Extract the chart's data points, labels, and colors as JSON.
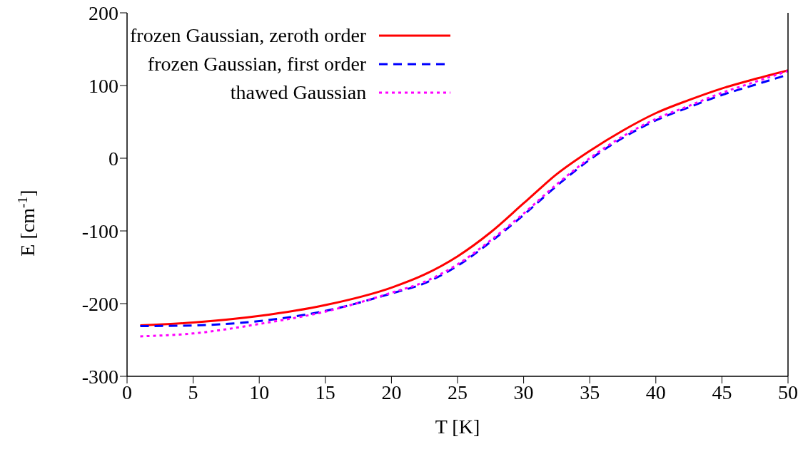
{
  "chart_data": {
    "type": "line",
    "xlabel": "T [K]",
    "ylabel": "E [cm$^{-1}$]",
    "xlim": [
      0,
      50
    ],
    "xticks": [
      0,
      5,
      10,
      15,
      20,
      25,
      30,
      35,
      40,
      45,
      50
    ],
    "ylim": [
      -300,
      200
    ],
    "yticks": [
      -300,
      -200,
      -100,
      0,
      100,
      200
    ],
    "grid": false,
    "legend": "top left",
    "marker": "none",
    "x": [
      1,
      5,
      10,
      15,
      20,
      22.5,
      25,
      27.5,
      30,
      32.5,
      35,
      37.5,
      40,
      42.5,
      45,
      47.5,
      50
    ],
    "series": [
      {
        "name": "frozen Gaussian, zeroth order",
        "color": "#ff0000",
        "line_style": "solid",
        "values": [
          -230,
          -226,
          -217,
          -202,
          -178,
          -160,
          -135,
          -102,
          -62,
          -22,
          10,
          38,
          62,
          80,
          96,
          109,
          121
        ]
      },
      {
        "name": "frozen Gaussian, first order",
        "color": "#0000ff",
        "line_style": "dashed",
        "values": [
          -231,
          -230,
          -224,
          -210,
          -186,
          -172,
          -148,
          -115,
          -78,
          -38,
          -2,
          28,
          52,
          70,
          87,
          101,
          115
        ]
      },
      {
        "name": "thawed Gaussian",
        "color": "#ff00ff",
        "line_style": "dotted",
        "values": [
          -245,
          -241,
          -228,
          -211,
          -185,
          -170,
          -146,
          -113,
          -76,
          -36,
          0,
          30,
          54,
          72,
          90,
          105,
          120
        ]
      }
    ]
  }
}
